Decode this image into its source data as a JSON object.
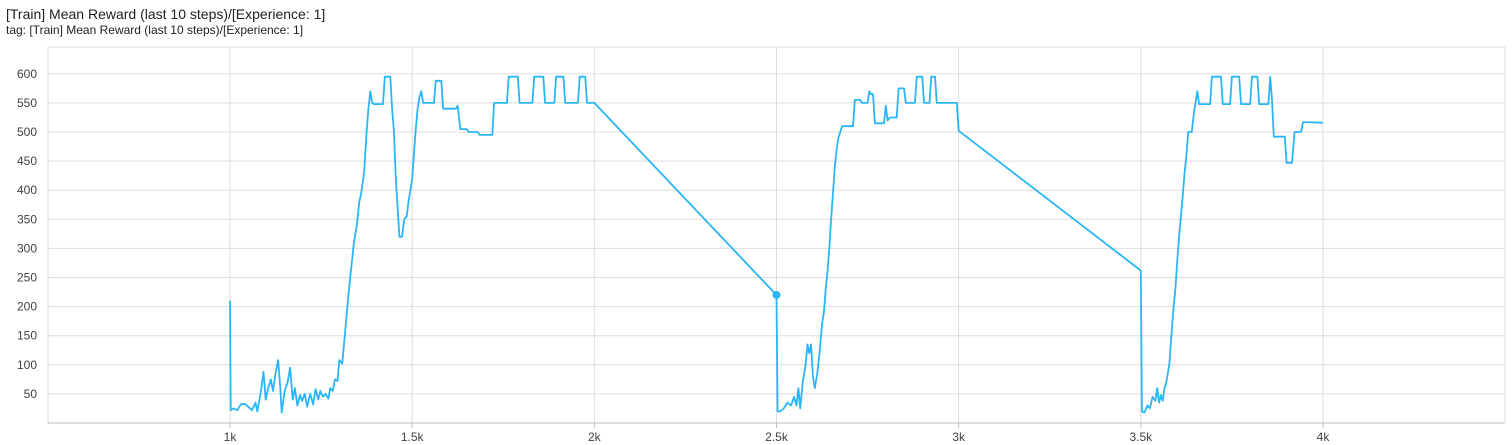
{
  "card": {
    "title": "[Train] Mean Reward (last 10 steps)/[Experience: 1]",
    "tag": "tag: [Train] Mean Reward (last 10 steps)/[Experience: 1]"
  },
  "chart_data": {
    "type": "line",
    "title": "[Train] Mean Reward (last 10 steps)/[Experience: 1]",
    "xlabel": "",
    "ylabel": "",
    "xlim": [
      0,
      4500
    ],
    "ylim": [
      0,
      605
    ],
    "x_ticks": [
      1000,
      1500,
      2000,
      2500,
      3000,
      3500,
      4000
    ],
    "x_tick_labels": [
      "1k",
      "1.5k",
      "2k",
      "2.5k",
      "3k",
      "3.5k",
      "4k"
    ],
    "y_ticks": [
      50,
      100,
      150,
      200,
      250,
      300,
      350,
      400,
      450,
      500,
      550,
      600
    ],
    "y_tick_labels": [
      "50",
      "100",
      "150",
      "200",
      "250",
      "300",
      "350",
      "400",
      "450",
      "500",
      "550",
      "600"
    ],
    "grid": true,
    "series_color": "#29b6f6",
    "series": [
      {
        "name": "",
        "points": [
          [
            1000,
            210
          ],
          [
            1002,
            22
          ],
          [
            1010,
            25
          ],
          [
            1020,
            22
          ],
          [
            1030,
            32
          ],
          [
            1040,
            33
          ],
          [
            1050,
            28
          ],
          [
            1060,
            22
          ],
          [
            1070,
            35
          ],
          [
            1075,
            20
          ],
          [
            1085,
            55
          ],
          [
            1092,
            88
          ],
          [
            1098,
            40
          ],
          [
            1105,
            60
          ],
          [
            1112,
            75
          ],
          [
            1118,
            55
          ],
          [
            1125,
            85
          ],
          [
            1132,
            108
          ],
          [
            1138,
            60
          ],
          [
            1142,
            18
          ],
          [
            1150,
            55
          ],
          [
            1158,
            70
          ],
          [
            1165,
            95
          ],
          [
            1172,
            40
          ],
          [
            1178,
            60
          ],
          [
            1185,
            30
          ],
          [
            1192,
            48
          ],
          [
            1198,
            38
          ],
          [
            1205,
            50
          ],
          [
            1212,
            28
          ],
          [
            1220,
            50
          ],
          [
            1228,
            32
          ],
          [
            1235,
            58
          ],
          [
            1242,
            40
          ],
          [
            1248,
            55
          ],
          [
            1255,
            45
          ],
          [
            1262,
            50
          ],
          [
            1270,
            42
          ],
          [
            1275,
            60
          ],
          [
            1282,
            55
          ],
          [
            1288,
            75
          ],
          [
            1295,
            72
          ],
          [
            1300,
            108
          ],
          [
            1308,
            102
          ],
          [
            1315,
            150
          ],
          [
            1320,
            185
          ],
          [
            1325,
            220
          ],
          [
            1330,
            250
          ],
          [
            1335,
            280
          ],
          [
            1340,
            310
          ],
          [
            1348,
            340
          ],
          [
            1355,
            380
          ],
          [
            1360,
            395
          ],
          [
            1368,
            430
          ],
          [
            1375,
            500
          ],
          [
            1380,
            540
          ],
          [
            1385,
            570
          ],
          [
            1390,
            550
          ],
          [
            1395,
            548
          ],
          [
            1420,
            548
          ],
          [
            1425,
            595
          ],
          [
            1440,
            595
          ],
          [
            1445,
            540
          ],
          [
            1450,
            500
          ],
          [
            1455,
            420
          ],
          [
            1460,
            370
          ],
          [
            1465,
            320
          ],
          [
            1472,
            320
          ],
          [
            1478,
            350
          ],
          [
            1485,
            355
          ],
          [
            1490,
            380
          ],
          [
            1500,
            420
          ],
          [
            1505,
            465
          ],
          [
            1510,
            505
          ],
          [
            1515,
            540
          ],
          [
            1520,
            560
          ],
          [
            1525,
            570
          ],
          [
            1530,
            550
          ],
          [
            1560,
            550
          ],
          [
            1565,
            588
          ],
          [
            1580,
            588
          ],
          [
            1585,
            540
          ],
          [
            1620,
            540
          ],
          [
            1625,
            545
          ],
          [
            1632,
            505
          ],
          [
            1650,
            505
          ],
          [
            1655,
            500
          ],
          [
            1680,
            500
          ],
          [
            1685,
            495
          ],
          [
            1720,
            495
          ],
          [
            1725,
            550
          ],
          [
            1760,
            550
          ],
          [
            1765,
            595
          ],
          [
            1790,
            595
          ],
          [
            1795,
            550
          ],
          [
            1830,
            550
          ],
          [
            1835,
            595
          ],
          [
            1860,
            595
          ],
          [
            1865,
            550
          ],
          [
            1890,
            550
          ],
          [
            1895,
            595
          ],
          [
            1915,
            595
          ],
          [
            1920,
            550
          ],
          [
            1955,
            550
          ],
          [
            1960,
            595
          ],
          [
            1975,
            595
          ],
          [
            1980,
            550
          ],
          [
            2000,
            550
          ],
          [
            2500,
            220
          ],
          [
            2503,
            20
          ],
          [
            2510,
            20
          ],
          [
            2520,
            25
          ],
          [
            2530,
            35
          ],
          [
            2540,
            30
          ],
          [
            2548,
            45
          ],
          [
            2555,
            30
          ],
          [
            2560,
            60
          ],
          [
            2565,
            25
          ],
          [
            2572,
            70
          ],
          [
            2580,
            100
          ],
          [
            2585,
            135
          ],
          [
            2590,
            120
          ],
          [
            2595,
            135
          ],
          [
            2600,
            80
          ],
          [
            2605,
            60
          ],
          [
            2612,
            85
          ],
          [
            2618,
            120
          ],
          [
            2625,
            170
          ],
          [
            2630,
            190
          ],
          [
            2635,
            230
          ],
          [
            2640,
            260
          ],
          [
            2645,
            300
          ],
          [
            2650,
            350
          ],
          [
            2655,
            395
          ],
          [
            2660,
            440
          ],
          [
            2665,
            470
          ],
          [
            2670,
            490
          ],
          [
            2675,
            500
          ],
          [
            2680,
            510
          ],
          [
            2710,
            510
          ],
          [
            2715,
            555
          ],
          [
            2730,
            555
          ],
          [
            2735,
            550
          ],
          [
            2750,
            550
          ],
          [
            2755,
            570
          ],
          [
            2760,
            565
          ],
          [
            2765,
            565
          ],
          [
            2770,
            515
          ],
          [
            2795,
            515
          ],
          [
            2800,
            545
          ],
          [
            2805,
            520
          ],
          [
            2812,
            525
          ],
          [
            2830,
            525
          ],
          [
            2835,
            575
          ],
          [
            2850,
            575
          ],
          [
            2855,
            550
          ],
          [
            2880,
            550
          ],
          [
            2885,
            595
          ],
          [
            2900,
            595
          ],
          [
            2905,
            550
          ],
          [
            2920,
            550
          ],
          [
            2925,
            595
          ],
          [
            2935,
            595
          ],
          [
            2940,
            550
          ],
          [
            2995,
            550
          ],
          [
            3000,
            502
          ],
          [
            3500,
            262
          ],
          [
            3503,
            20
          ],
          [
            3510,
            18
          ],
          [
            3518,
            30
          ],
          [
            3525,
            25
          ],
          [
            3532,
            45
          ],
          [
            3540,
            38
          ],
          [
            3545,
            60
          ],
          [
            3550,
            35
          ],
          [
            3555,
            48
          ],
          [
            3560,
            38
          ],
          [
            3565,
            60
          ],
          [
            3570,
            70
          ],
          [
            3578,
            100
          ],
          [
            3585,
            160
          ],
          [
            3590,
            200
          ],
          [
            3595,
            230
          ],
          [
            3600,
            280
          ],
          [
            3605,
            320
          ],
          [
            3610,
            355
          ],
          [
            3615,
            390
          ],
          [
            3620,
            430
          ],
          [
            3625,
            460
          ],
          [
            3630,
            500
          ],
          [
            3640,
            500
          ],
          [
            3645,
            530
          ],
          [
            3650,
            550
          ],
          [
            3655,
            570
          ],
          [
            3660,
            548
          ],
          [
            3690,
            548
          ],
          [
            3695,
            595
          ],
          [
            3720,
            595
          ],
          [
            3725,
            548
          ],
          [
            3745,
            548
          ],
          [
            3750,
            595
          ],
          [
            3770,
            595
          ],
          [
            3775,
            548
          ],
          [
            3800,
            548
          ],
          [
            3805,
            595
          ],
          [
            3820,
            595
          ],
          [
            3825,
            548
          ],
          [
            3850,
            548
          ],
          [
            3855,
            595
          ],
          [
            3860,
            555
          ],
          [
            3865,
            492
          ],
          [
            3895,
            492
          ],
          [
            3900,
            447
          ],
          [
            3915,
            447
          ],
          [
            3918,
            470
          ],
          [
            3922,
            500
          ],
          [
            3940,
            500
          ],
          [
            3945,
            517
          ],
          [
            4000,
            516
          ]
        ],
        "highlight_point": [
          2500,
          220
        ]
      }
    ]
  }
}
